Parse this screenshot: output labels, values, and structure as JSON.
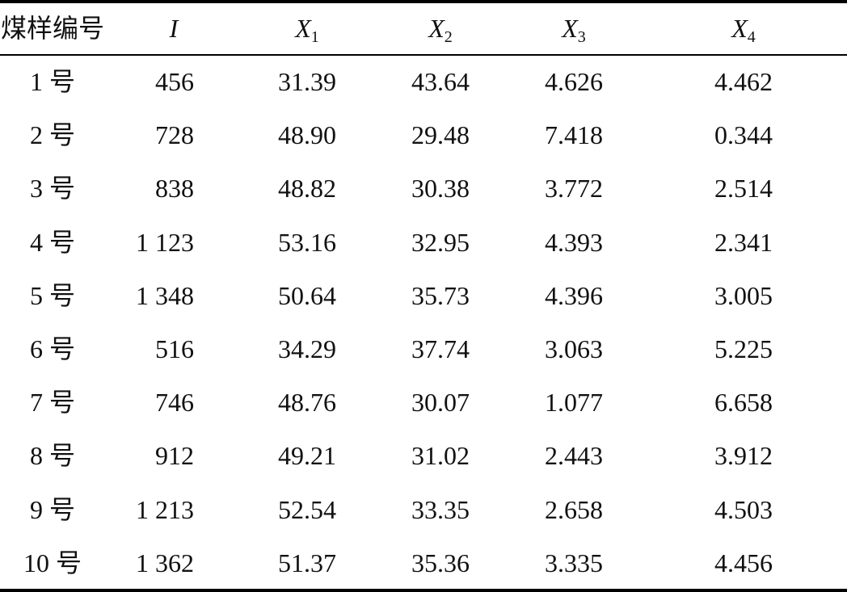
{
  "table": {
    "header": [
      {
        "text": "煤样编号"
      },
      {
        "text": "I"
      },
      {
        "text": "X",
        "sub": "1"
      },
      {
        "text": "X",
        "sub": "2"
      },
      {
        "text": "X",
        "sub": "3"
      },
      {
        "text": "X",
        "sub": "4"
      }
    ],
    "rows": [
      [
        "1 号",
        "456",
        "31.39",
        "43.64",
        "4.626",
        "4.462"
      ],
      [
        "2 号",
        "728",
        "48.90",
        "29.48",
        "7.418",
        "0.344"
      ],
      [
        "3 号",
        "838",
        "48.82",
        "30.38",
        "3.772",
        "2.514"
      ],
      [
        "4 号",
        "1 123",
        "53.16",
        "32.95",
        "4.393",
        "2.341"
      ],
      [
        "5 号",
        "1 348",
        "50.64",
        "35.73",
        "4.396",
        "3.005"
      ],
      [
        "6 号",
        "516",
        "34.29",
        "37.74",
        "3.063",
        "5.225"
      ],
      [
        "7 号",
        "746",
        "48.76",
        "30.07",
        "1.077",
        "6.658"
      ],
      [
        "8 号",
        "912",
        "49.21",
        "31.02",
        "2.443",
        "3.912"
      ],
      [
        "9 号",
        "1 213",
        "52.54",
        "33.35",
        "2.658",
        "4.503"
      ],
      [
        "10 号",
        "1 362",
        "51.37",
        "35.36",
        "3.335",
        "4.456"
      ]
    ]
  }
}
